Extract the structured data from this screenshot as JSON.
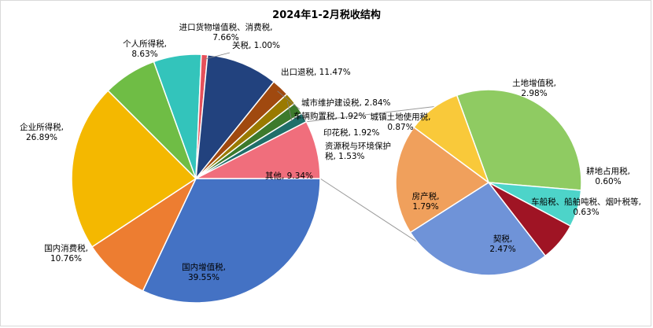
{
  "chart_data": {
    "type": "pie",
    "title": "2024年1-2月税收结构",
    "main_pie": [
      {
        "name": "国内增值税",
        "value": 39.55,
        "color": "#4472c4"
      },
      {
        "name": "国内消费税",
        "value": 10.76,
        "color": "#ed7d31"
      },
      {
        "name": "企业所得税",
        "value": 26.89,
        "color": "#f4b800"
      },
      {
        "name": "个人所得税",
        "value": 8.63,
        "color": "#6fbd45"
      },
      {
        "name": "进口货物增值税、消费税",
        "value": 7.66,
        "color": "#33c4bb"
      },
      {
        "name": "关税",
        "value": 1.0,
        "color": "#e5505a"
      },
      {
        "name": "出口退税",
        "value": 11.47,
        "color": "#22427e"
      },
      {
        "name": "城市维护建设税",
        "value": 2.84,
        "color": "#a0490f"
      },
      {
        "name": "车辆购置税",
        "value": 1.92,
        "color": "#9a7a00"
      },
      {
        "name": "印花税",
        "value": 1.92,
        "color": "#3d7a2c"
      },
      {
        "name": "资源税与环境保护税",
        "value": 1.53,
        "color": "#206f6a"
      },
      {
        "name": "其他",
        "value": 9.34,
        "color": "#f06e7c"
      }
    ],
    "sub_pie": [
      {
        "name": "土地增值税",
        "value": 2.98,
        "color": "#8fcb62"
      },
      {
        "name": "耕地占用税",
        "value": 0.6,
        "color": "#4dd4c9"
      },
      {
        "name": "车船税、船舶吨税、烟叶税等",
        "value": 0.63,
        "color": "#9f1424"
      },
      {
        "name": "契税",
        "value": 2.47,
        "color": "#6f93d8"
      },
      {
        "name": "房产税",
        "value": 1.79,
        "color": "#f0a05c"
      },
      {
        "name": "城镇土地使用税",
        "value": 0.87,
        "color": "#f9c93a"
      }
    ],
    "labels": {
      "国内增值税": [
        "国内增值税,",
        "39.55%"
      ],
      "国内消费税": [
        "国内消费税,",
        "10.76%"
      ],
      "企业所得税": [
        "企业所得税,",
        "26.89%"
      ],
      "个人所得税": [
        "个人所得税,",
        "8.63%"
      ],
      "进口货物增值税、消费税": [
        "进口货物增值税、消费税,",
        "7.66%"
      ],
      "关税": [
        "关税, 1.00%"
      ],
      "出口退税": [
        "出口退税, 11.47%"
      ],
      "城市维护建设税": [
        "城市维护建设税, 2.84%"
      ],
      "车辆购置税": [
        "车辆购置税, 1.92%"
      ],
      "印花税": [
        "印花税, 1.92%"
      ],
      "资源税与环境保护税": [
        "资源税与环境保护",
        "税, 1.53%"
      ],
      "其他": [
        "其他, 9.34%"
      ],
      "土地增值税": [
        "土地增值税,",
        "2.98%"
      ],
      "耕地占用税": [
        "耕地占用税,",
        "0.60%"
      ],
      "车船税、船舶吨税、烟叶税等": [
        "车船税、船舶吨税、烟叶税等,",
        "0.63%"
      ],
      "契税": [
        "契税,",
        "2.47%"
      ],
      "房产税": [
        "房产税,",
        "1.79%"
      ],
      "城镇土地使用税": [
        "城镇土地使用税,",
        "0.87%"
      ]
    }
  }
}
